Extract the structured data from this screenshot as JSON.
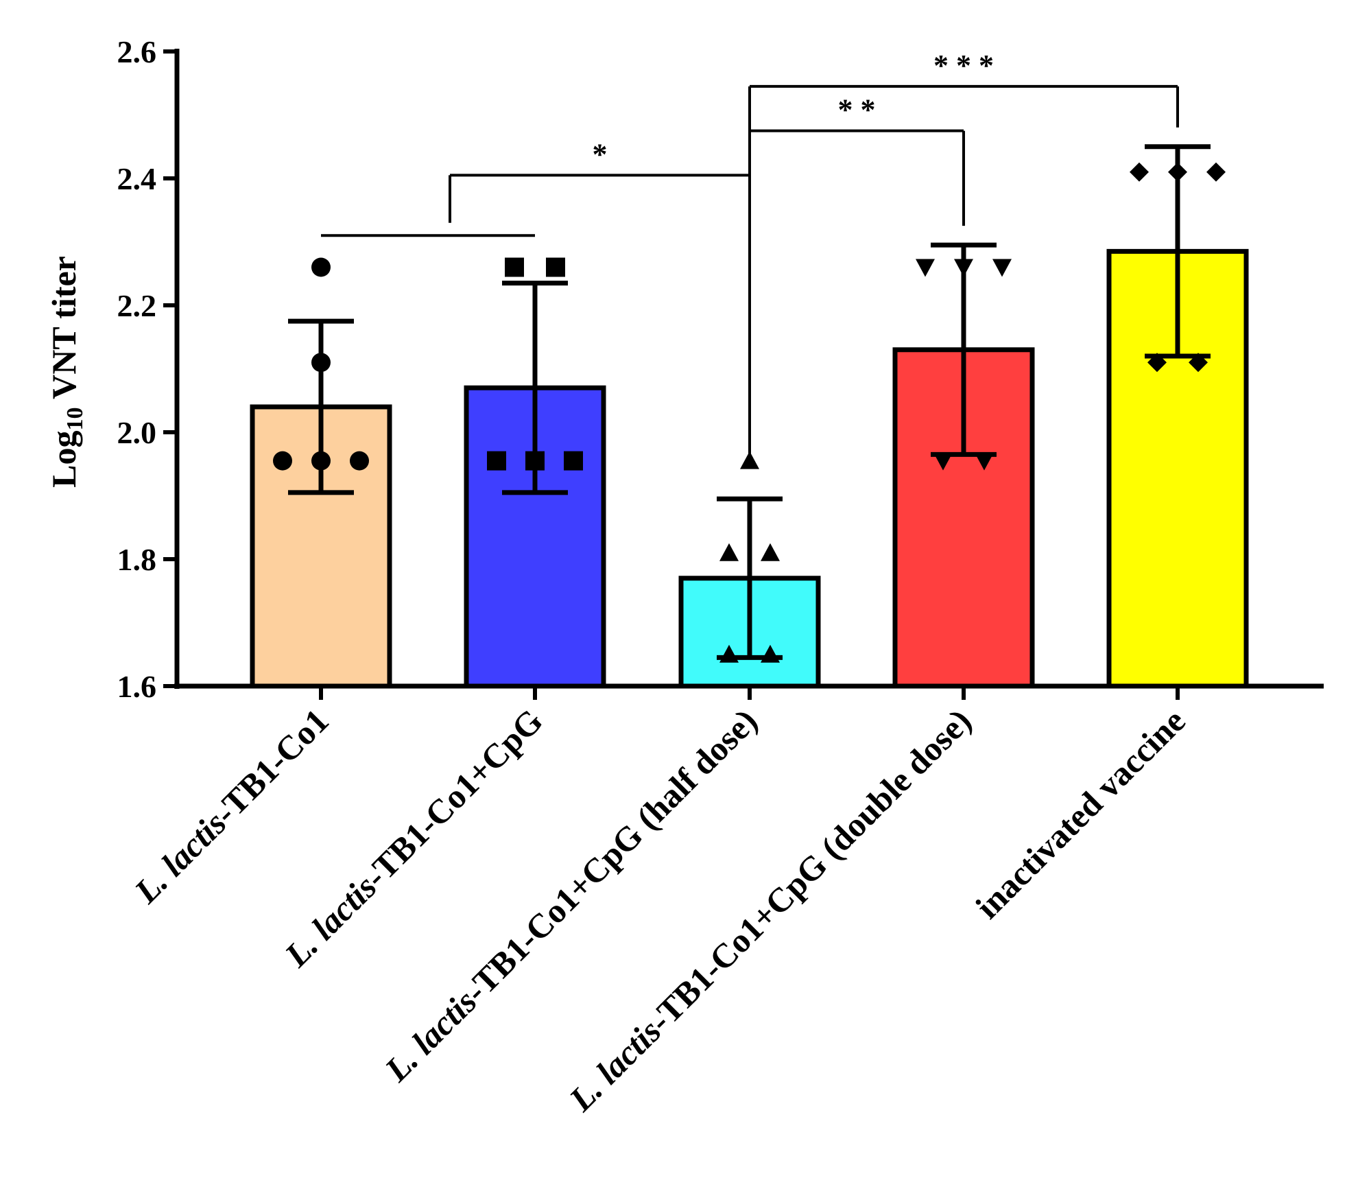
{
  "chart_data": {
    "type": "bar",
    "title": "",
    "xlabel": "",
    "ylabel": {
      "prefix": "Log",
      "subscript": "10",
      "suffix": " VNT titer"
    },
    "ylim": [
      1.6,
      2.6
    ],
    "yticks": [
      "1.6",
      "1.8",
      "2.0",
      "2.2",
      "2.4",
      "2.6"
    ],
    "categories": [
      {
        "italic": "L. lactis",
        "rest": "-TB1-Co1"
      },
      {
        "italic": "L. lactis",
        "rest": "-TB1-Co1+CpG"
      },
      {
        "italic": "L. lactis",
        "rest": "-TB1-Co1+CpG (half dose)"
      },
      {
        "italic": "L. lactis",
        "rest": "-TB1-Co1+CpG (double dose)"
      },
      {
        "italic": "",
        "rest": "inactivated vaccine"
      }
    ],
    "values": [
      2.04,
      2.07,
      1.77,
      2.13,
      2.285
    ],
    "error": [
      0.135,
      0.165,
      0.125,
      0.165,
      0.165
    ],
    "colors": [
      "#FDD09E",
      "#3F3FFF",
      "#41FBFB",
      "#FF3F3F",
      "#FFFF00"
    ],
    "markers": [
      "circle-icon",
      "square-icon",
      "triangle-up-icon",
      "triangle-down-icon",
      "diamond-icon"
    ],
    "points": [
      [
        2.26,
        2.11,
        1.955,
        1.955,
        1.955
      ],
      [
        2.26,
        2.26,
        1.955,
        1.955,
        1.955
      ],
      [
        1.955,
        1.81,
        1.81,
        1.65,
        1.65
      ],
      [
        2.26,
        2.26,
        2.26,
        1.955,
        1.955
      ],
      [
        2.41,
        2.41,
        2.41,
        2.11,
        2.11
      ]
    ],
    "significance": [
      {
        "label": "*",
        "group_a": [
          0,
          1
        ],
        "group_b": 2,
        "bar_y": 2.405
      },
      {
        "label": "* *",
        "group_a": [
          2
        ],
        "group_b": 3,
        "bar_y": 2.475
      },
      {
        "label": "* * *",
        "group_a": [
          2
        ],
        "group_b": 4,
        "bar_y": 2.545
      }
    ]
  }
}
